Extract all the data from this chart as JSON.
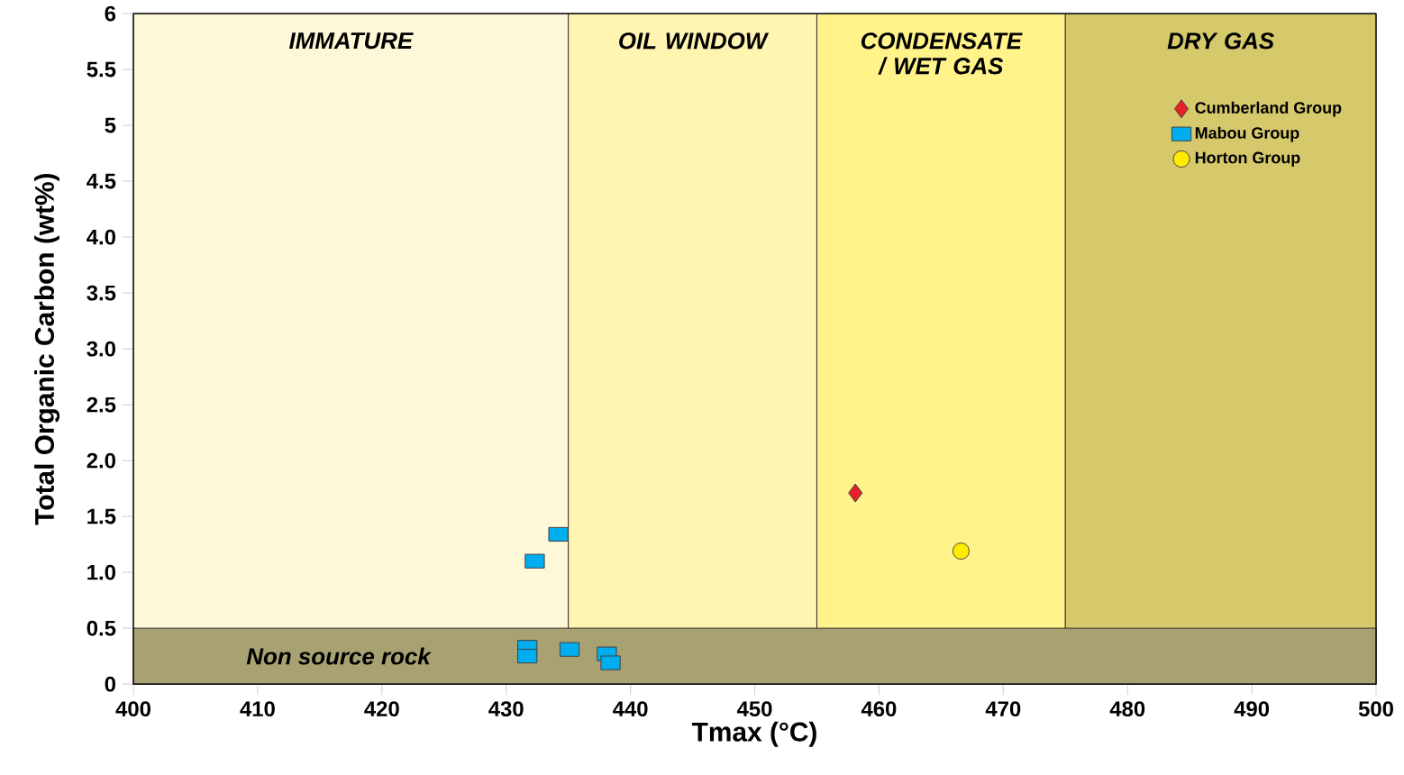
{
  "chart_data": {
    "type": "scatter",
    "xlabel": "Tmax (°C)",
    "ylabel": "Total Organic Carbon (wt%)",
    "xlim": [
      400,
      500
    ],
    "ylim": [
      0,
      6
    ],
    "xticks": [
      400,
      410,
      420,
      430,
      440,
      450,
      460,
      470,
      480,
      490,
      500
    ],
    "yticks": [
      0,
      0.5,
      {
        "value": 1,
        "label": "1.0"
      },
      {
        "value": 1.5,
        "label": "1.5"
      },
      {
        "value": 2,
        "label": "2.0"
      },
      {
        "value": 2.5,
        "label": "2.5"
      },
      {
        "value": 3,
        "label": "3.0"
      },
      {
        "value": 3.5,
        "label": "3.5"
      },
      {
        "value": 4,
        "label": "4.0"
      },
      {
        "value": 4.5,
        "label": "4.5"
      },
      5,
      5.5,
      6
    ],
    "bands": [
      {
        "axis": "x",
        "from": 400,
        "to": 435,
        "label": "IMMATURE",
        "color": "#fff8d8"
      },
      {
        "axis": "x",
        "from": 435,
        "to": 455,
        "label": "OIL WINDOW",
        "color": "#fff4b0"
      },
      {
        "axis": "x",
        "from": 455,
        "to": 475,
        "label": "CONDENSATE / WET GAS",
        "color": "#fff389"
      },
      {
        "axis": "x",
        "from": 475,
        "to": 500,
        "label": "DRY GAS",
        "color": "#d6c96b"
      },
      {
        "axis": "y",
        "from": 0,
        "to": 0.5,
        "label": "Non source rock",
        "color": "#a8a273"
      }
    ],
    "legend": "top right",
    "series": [
      {
        "name": "Cumberland Group",
        "color": "#e8202a",
        "marker": "diamond",
        "x": [
          458.1
        ],
        "values": [
          1.71
        ]
      },
      {
        "name": "Mabou Group",
        "color": "#00aeef",
        "marker": "square",
        "x": [
          432.3,
          434.2,
          431.7,
          431.7,
          435.1,
          438.1,
          438.4
        ],
        "values": [
          1.1,
          1.34,
          0.33,
          0.25,
          0.31,
          0.27,
          0.19
        ]
      },
      {
        "name": "Horton Group",
        "color": "#ffec00",
        "marker": "circle",
        "x": [
          466.6
        ],
        "values": [
          1.19
        ]
      }
    ]
  }
}
